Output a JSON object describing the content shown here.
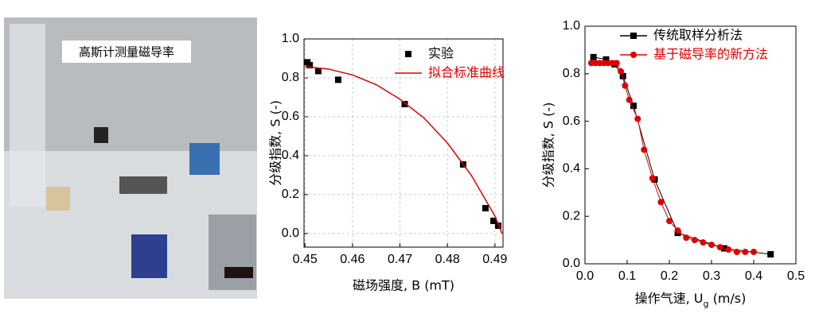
{
  "photo_caption": "高斯计测量磁导率",
  "chart_data": [
    {
      "type": "scatter",
      "xlabel": "磁场强度, B (mT)",
      "ylabel": "分级指数, S (-)",
      "xlim": [
        0.4498,
        0.4917
      ],
      "ylim": [
        -0.07,
        1.0
      ],
      "xticks": [
        0.45,
        0.46,
        0.47,
        0.48,
        0.49
      ],
      "yticks": [
        {
          "value": 0,
          "label": "0.0"
        },
        0.2,
        0.4,
        0.6,
        0.8,
        {
          "value": 1,
          "label": "1.0"
        }
      ],
      "grid": true,
      "series": [
        {
          "name": "实验",
          "kind": "scatter",
          "marker": "square",
          "color": "#000000",
          "x": [
            0.4505,
            0.451,
            0.4528,
            0.457,
            0.471,
            0.4833,
            0.488,
            0.4897,
            0.4907
          ],
          "values": [
            0.88,
            0.865,
            0.835,
            0.79,
            0.665,
            0.355,
            0.13,
            0.065,
            0.04
          ]
        },
        {
          "name": "拟合标准曲线",
          "kind": "line",
          "color": "#e00000",
          "x": [
            0.45,
            0.455,
            0.46,
            0.465,
            0.47,
            0.475,
            0.48,
            0.485,
            0.49,
            0.4915
          ],
          "values": [
            0.858,
            0.845,
            0.815,
            0.765,
            0.69,
            0.595,
            0.465,
            0.3,
            0.09,
            0.0
          ]
        }
      ]
    },
    {
      "type": "line",
      "xlabel": [
        "操作气速, U",
        "g",
        " (m/s)"
      ],
      "ylabel": "分级指数, S (-)",
      "xlim": [
        0,
        0.5
      ],
      "ylim": [
        0,
        1.0
      ],
      "xticks": [
        {
          "value": 0,
          "label": "0.0"
        },
        0.1,
        0.2,
        0.3,
        0.4,
        0.5
      ],
      "yticks": [
        {
          "value": 0,
          "label": "0.0"
        },
        0.2,
        0.4,
        0.6,
        0.8,
        {
          "value": 1,
          "label": "1.0"
        }
      ],
      "grid": false,
      "series": [
        {
          "name": "传统取样分析法",
          "kind": "linemark",
          "marker": "square",
          "color": "#000000",
          "x": [
            0.02,
            0.05,
            0.07,
            0.09,
            0.115,
            0.165,
            0.22,
            0.33,
            0.44
          ],
          "values": [
            0.87,
            0.86,
            0.84,
            0.79,
            0.665,
            0.355,
            0.13,
            0.065,
            0.04
          ]
        },
        {
          "name": "基于磁导率的新方法",
          "kind": "linemark",
          "marker": "circle",
          "color": "#e00000",
          "x": [
            0.015,
            0.025,
            0.035,
            0.045,
            0.055,
            0.065,
            0.075,
            0.085,
            0.095,
            0.105,
            0.125,
            0.14,
            0.16,
            0.18,
            0.2,
            0.22,
            0.24,
            0.26,
            0.28,
            0.3,
            0.32,
            0.34,
            0.36,
            0.38,
            0.4
          ],
          "values": [
            0.845,
            0.845,
            0.845,
            0.845,
            0.845,
            0.845,
            0.845,
            0.81,
            0.75,
            0.69,
            0.61,
            0.48,
            0.36,
            0.26,
            0.18,
            0.14,
            0.11,
            0.1,
            0.09,
            0.08,
            0.07,
            0.06,
            0.05,
            0.05,
            0.05
          ]
        }
      ]
    }
  ]
}
